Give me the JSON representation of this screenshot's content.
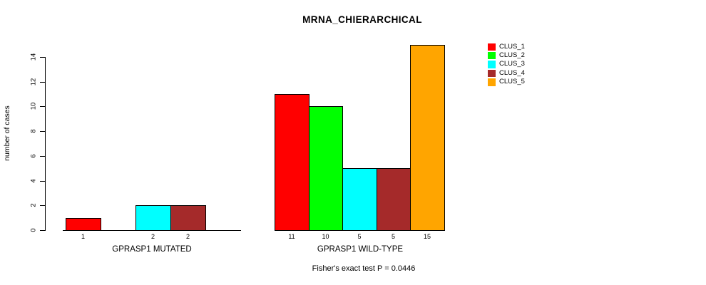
{
  "chart_data": {
    "type": "bar",
    "title": "MRNA_CHIERARCHICAL",
    "ylabel": "number of cases",
    "footnote": "Fisher's exact test P = 0.0446",
    "y_ticks": [
      0,
      2,
      4,
      6,
      8,
      10,
      12,
      14
    ],
    "ylim": [
      0,
      14
    ],
    "grid": false,
    "background": "#FFFFFF",
    "categories": [
      "CLUS_1",
      "CLUS_2",
      "CLUS_3",
      "CLUS_4",
      "CLUS_5"
    ],
    "legend": {
      "position": "right",
      "items": [
        {
          "name": "CLUS_1",
          "color": "#FF0000"
        },
        {
          "name": "CLUS_2",
          "color": "#00FF00"
        },
        {
          "name": "CLUS_3",
          "color": "#00FFFF"
        },
        {
          "name": "CLUS_4",
          "color": "#A52A2A"
        },
        {
          "name": "CLUS_5",
          "color": "#FFA500"
        }
      ]
    },
    "groups": [
      {
        "label": "GPRASP1 MUTATED",
        "values": [
          1,
          0,
          2,
          2,
          0
        ],
        "bar_labels": [
          "1",
          "",
          "2",
          "2",
          ""
        ]
      },
      {
        "label": "GPRASP1 WILD-TYPE",
        "values": [
          11,
          10,
          5,
          5,
          15
        ],
        "bar_labels": [
          "11",
          "10",
          "5",
          "5",
          "15"
        ]
      }
    ]
  }
}
